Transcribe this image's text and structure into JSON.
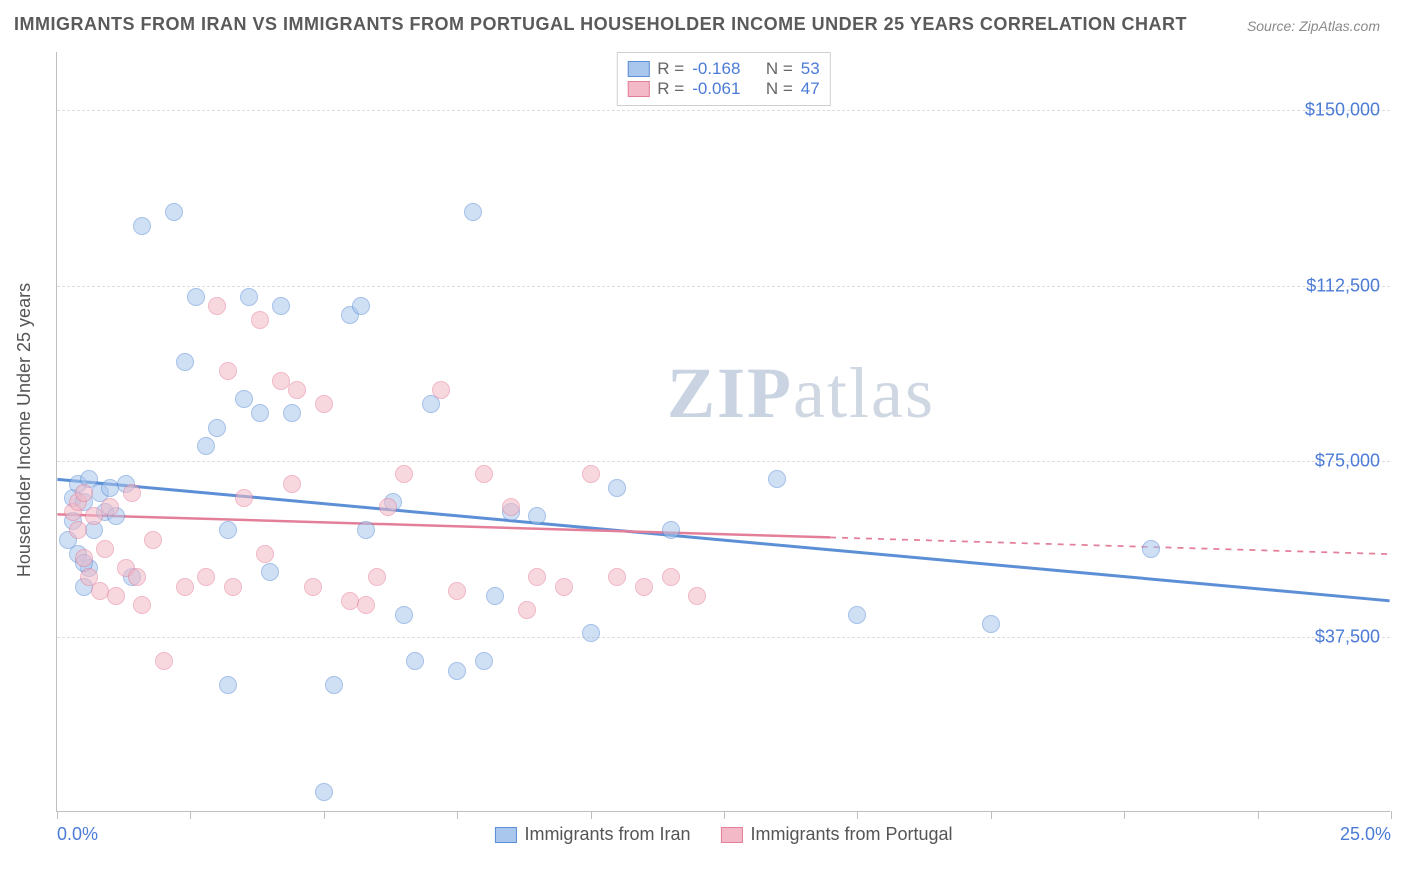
{
  "title": "IMMIGRANTS FROM IRAN VS IMMIGRANTS FROM PORTUGAL HOUSEHOLDER INCOME UNDER 25 YEARS CORRELATION CHART",
  "source": "Source: ZipAtlas.com",
  "watermark_a": "ZIP",
  "watermark_b": "atlas",
  "ylabel": "Householder Income Under 25 years",
  "chart": {
    "type": "scatter",
    "xlim": [
      0,
      25
    ],
    "ylim": [
      0,
      162500
    ],
    "xticks": [
      0,
      2.5,
      5,
      7.5,
      10,
      12.5,
      15,
      17.5,
      20,
      22.5,
      25
    ],
    "xtick_labels": {
      "0": "0.0%",
      "25": "25.0%"
    },
    "yticks": [
      37500,
      75000,
      112500,
      150000
    ],
    "ytick_labels": [
      "$37,500",
      "$75,000",
      "$112,500",
      "$150,000"
    ],
    "grid_color": "#dcdcdc",
    "axis_color": "#bfbfbf",
    "background_color": "#ffffff",
    "marker_radius": 9,
    "marker_opacity": 0.55,
    "series": [
      {
        "name": "Immigrants from Iran",
        "color_fill": "#a9c6ec",
        "color_stroke": "#5c8fd6",
        "r": -0.168,
        "n": 53,
        "trend": {
          "x1": 0,
          "y1": 71000,
          "x2": 25,
          "y2": 45000,
          "solid_until_x": 25,
          "width": 3
        },
        "points": [
          [
            0.2,
            58000
          ],
          [
            0.3,
            62000
          ],
          [
            0.3,
            67000
          ],
          [
            0.4,
            70000
          ],
          [
            0.4,
            55000
          ],
          [
            0.5,
            48000
          ],
          [
            0.5,
            66000
          ],
          [
            0.6,
            71000
          ],
          [
            0.6,
            52000
          ],
          [
            0.7,
            60000
          ],
          [
            0.8,
            68000
          ],
          [
            0.9,
            64000
          ],
          [
            1.0,
            69000
          ],
          [
            1.1,
            63000
          ],
          [
            1.3,
            70000
          ],
          [
            1.4,
            50000
          ],
          [
            1.6,
            125000
          ],
          [
            2.2,
            128000
          ],
          [
            2.4,
            96000
          ],
          [
            2.6,
            110000
          ],
          [
            2.8,
            78000
          ],
          [
            3.0,
            82000
          ],
          [
            3.2,
            27000
          ],
          [
            3.2,
            60000
          ],
          [
            3.5,
            88000
          ],
          [
            3.6,
            110000
          ],
          [
            3.8,
            85000
          ],
          [
            4.0,
            51000
          ],
          [
            4.2,
            108000
          ],
          [
            4.4,
            85000
          ],
          [
            5.0,
            4000
          ],
          [
            5.2,
            27000
          ],
          [
            5.5,
            106000
          ],
          [
            5.7,
            108000
          ],
          [
            5.8,
            60000
          ],
          [
            6.3,
            66000
          ],
          [
            6.5,
            42000
          ],
          [
            6.7,
            32000
          ],
          [
            7.0,
            87000
          ],
          [
            7.5,
            30000
          ],
          [
            7.8,
            128000
          ],
          [
            8.0,
            32000
          ],
          [
            8.2,
            46000
          ],
          [
            8.5,
            64000
          ],
          [
            9.0,
            63000
          ],
          [
            10.0,
            38000
          ],
          [
            10.5,
            69000
          ],
          [
            11.5,
            60000
          ],
          [
            13.5,
            71000
          ],
          [
            15.0,
            42000
          ],
          [
            17.5,
            40000
          ],
          [
            20.5,
            56000
          ],
          [
            0.5,
            53000
          ]
        ]
      },
      {
        "name": "Immigrants from Portugal",
        "color_fill": "#f4b9c6",
        "color_stroke": "#e47f9a",
        "r": -0.061,
        "n": 47,
        "trend": {
          "x1": 0,
          "y1": 63500,
          "x2": 25,
          "y2": 55000,
          "solid_until_x": 14.5,
          "width": 2.5
        },
        "points": [
          [
            0.3,
            64000
          ],
          [
            0.4,
            66000
          ],
          [
            0.4,
            60000
          ],
          [
            0.5,
            54000
          ],
          [
            0.5,
            68000
          ],
          [
            0.6,
            50000
          ],
          [
            0.7,
            63000
          ],
          [
            0.8,
            47000
          ],
          [
            0.9,
            56000
          ],
          [
            1.0,
            65000
          ],
          [
            1.1,
            46000
          ],
          [
            1.3,
            52000
          ],
          [
            1.4,
            68000
          ],
          [
            1.5,
            50000
          ],
          [
            1.6,
            44000
          ],
          [
            1.8,
            58000
          ],
          [
            2.0,
            32000
          ],
          [
            2.4,
            48000
          ],
          [
            2.8,
            50000
          ],
          [
            3.0,
            108000
          ],
          [
            3.2,
            94000
          ],
          [
            3.3,
            48000
          ],
          [
            3.5,
            67000
          ],
          [
            3.8,
            105000
          ],
          [
            3.9,
            55000
          ],
          [
            4.2,
            92000
          ],
          [
            4.4,
            70000
          ],
          [
            4.5,
            90000
          ],
          [
            4.8,
            48000
          ],
          [
            5.0,
            87000
          ],
          [
            5.5,
            45000
          ],
          [
            6.0,
            50000
          ],
          [
            6.2,
            65000
          ],
          [
            6.5,
            72000
          ],
          [
            7.2,
            90000
          ],
          [
            7.5,
            47000
          ],
          [
            8.0,
            72000
          ],
          [
            8.5,
            65000
          ],
          [
            9.0,
            50000
          ],
          [
            9.5,
            48000
          ],
          [
            10.0,
            72000
          ],
          [
            10.5,
            50000
          ],
          [
            11.0,
            48000
          ],
          [
            11.5,
            50000
          ],
          [
            12.0,
            46000
          ],
          [
            8.8,
            43000
          ],
          [
            5.8,
            44000
          ]
        ]
      }
    ]
  },
  "legend_top": {
    "r_label": "R =",
    "n_label": "N ="
  }
}
